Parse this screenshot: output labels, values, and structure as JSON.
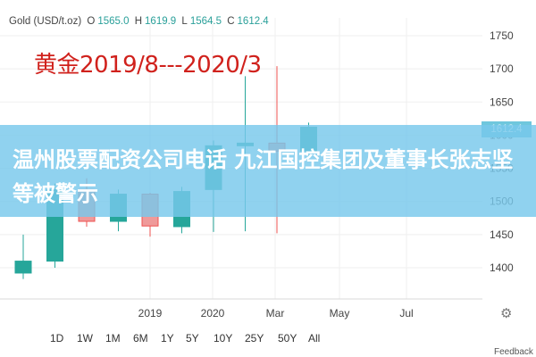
{
  "header": {
    "symbol": "Gold (USD/t.oz)",
    "o_label": "O",
    "o_value": "1565.0",
    "h_label": "H",
    "h_value": "1619.9",
    "l_label": "L",
    "l_value": "1564.5",
    "c_label": "C",
    "c_value": "1612.4"
  },
  "overlay_title": "黄金2019/8---2020/3",
  "banner": {
    "text": "温州股票配资公司电话 九江国控集团及董事长张志坚等被警示"
  },
  "price_tag": "1612.4",
  "range_buttons": [
    "1D",
    "1W",
    "1M",
    "6M",
    "1Y",
    "5Y",
    "10Y",
    "25Y",
    "50Y",
    "All"
  ],
  "feedback_label": "Feedback",
  "icons": {
    "settings": "gear-icon"
  },
  "colors": {
    "up": "#26a69a",
    "down": "#ef5350",
    "down_body": "#ef9a9a"
  },
  "chart_data": {
    "type": "candlestick",
    "y_ticks": [
      1750,
      1700,
      1650,
      1600,
      1550,
      1500,
      1450,
      1400
    ],
    "ylim": [
      1360,
      1780
    ],
    "x_labels": [
      "2019",
      "2020",
      "Mar",
      "May",
      "Jul"
    ],
    "candles": [
      {
        "o": 1392,
        "h": 1450,
        "l": 1383,
        "c": 1410
      },
      {
        "o": 1410,
        "h": 1527,
        "l": 1400,
        "c": 1518
      },
      {
        "o": 1518,
        "h": 1535,
        "l": 1462,
        "c": 1470
      },
      {
        "o": 1470,
        "h": 1518,
        "l": 1455,
        "c": 1511
      },
      {
        "o": 1511,
        "h": 1513,
        "l": 1447,
        "c": 1463
      },
      {
        "o": 1462,
        "h": 1522,
        "l": 1452,
        "c": 1515
      },
      {
        "o": 1518,
        "h": 1592,
        "l": 1454,
        "c": 1584
      },
      {
        "o": 1584,
        "h": 1689,
        "l": 1455,
        "c": 1588
      },
      {
        "o": 1588,
        "h": 1704,
        "l": 1452,
        "c": 1576
      },
      {
        "o": 1576,
        "h": 1619,
        "l": 1564,
        "c": 1612
      }
    ]
  }
}
